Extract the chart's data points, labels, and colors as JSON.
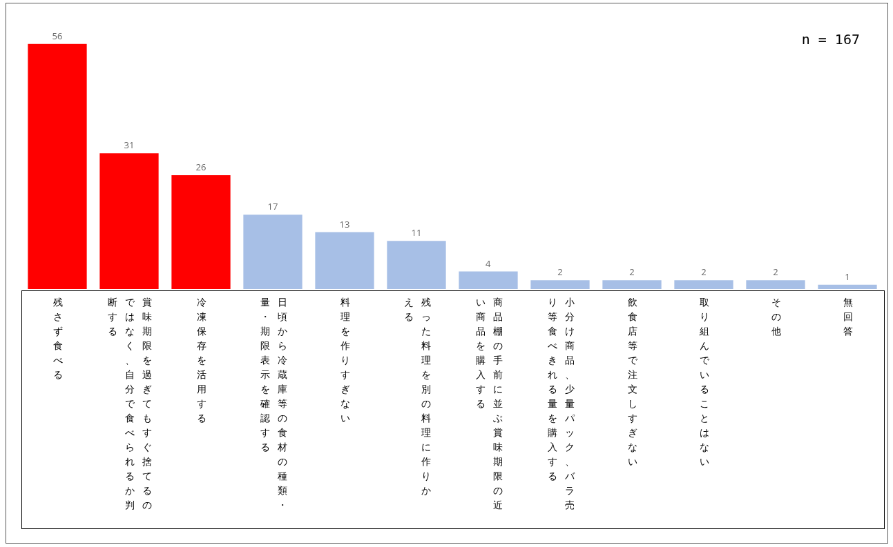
{
  "chart_data": {
    "type": "bar",
    "categories": [
      "残さず食べる",
      "賞味期限を過ぎてもすぐ捨てるのではなく、自分で食べられるか判断する",
      "冷凍保存を活用する",
      "日頃から冷蔵庫等の食材の種類・量・期限表示を確認する",
      "料理を作りすぎない",
      "残った料理を別の料理に作りかえる",
      "商品棚の手前に並ぶ賞味期限の近い商品を購入する",
      "小分け商品、少量パック、バラ売り等食べきれる量を購入する",
      "飲食店等で注文しすぎない",
      "取り組んでいることはない",
      "その他",
      "無回答"
    ],
    "values": [
      56,
      31,
      26,
      17,
      13,
      11,
      4,
      2,
      2,
      2,
      2,
      1
    ],
    "colors": [
      "#ff0000",
      "#ff0000",
      "#ff0000",
      "#a7bfe6",
      "#a7bfe6",
      "#a7bfe6",
      "#a7bfe6",
      "#a7bfe6",
      "#a7bfe6",
      "#a7bfe6",
      "#a7bfe6",
      "#a7bfe6"
    ],
    "data_labels": true,
    "grid": false,
    "tick_labels": "x",
    "annotations": [
      "n = 167"
    ]
  }
}
